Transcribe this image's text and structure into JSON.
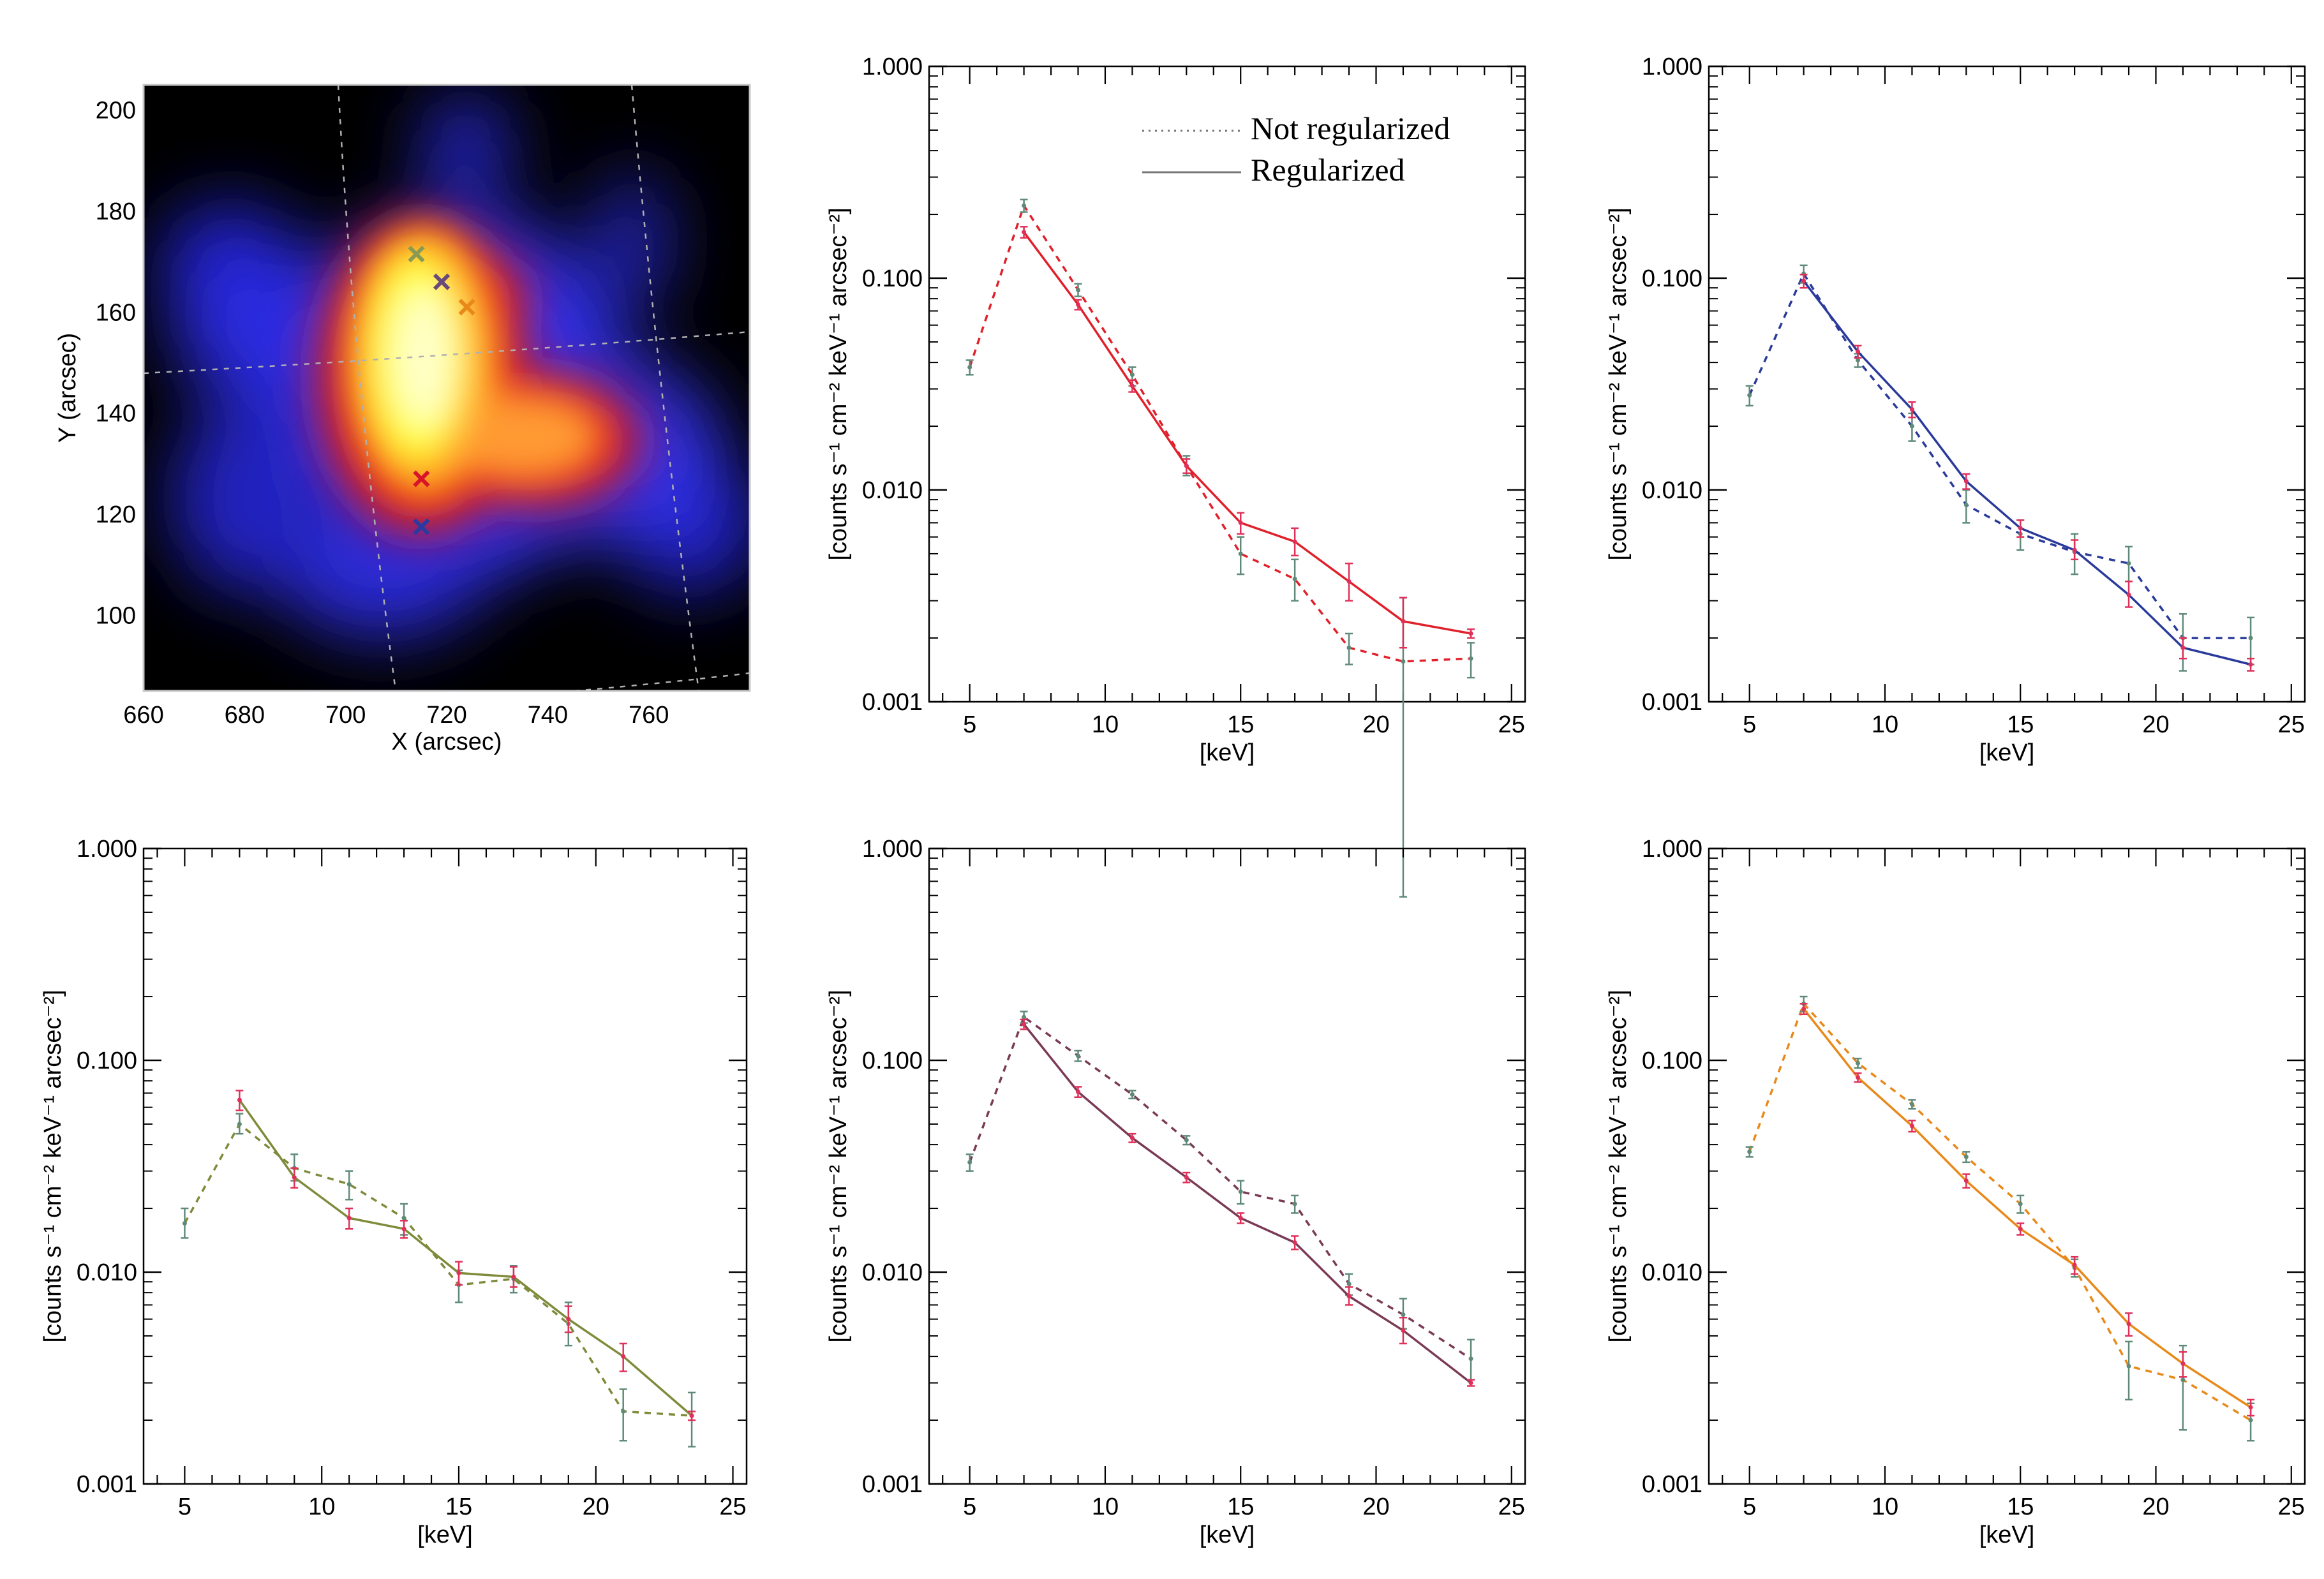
{
  "figure": {
    "map_panel": {
      "xlabel": "X (arcsec)",
      "ylabel": "Y (arcsec)",
      "xlim": [
        660,
        780
      ],
      "ylim": [
        85,
        205
      ],
      "xticks": [
        "660",
        "680",
        "700",
        "720",
        "740",
        "760"
      ],
      "yticks": [
        "100",
        "120",
        "140",
        "160",
        "180",
        "200"
      ],
      "markers": [
        {
          "name": "marker-olive",
          "x": 714,
          "y": 171.5,
          "color": "#8a9a55"
        },
        {
          "name": "marker-purple",
          "x": 719,
          "y": 166,
          "color": "#6a4a7a"
        },
        {
          "name": "marker-orange",
          "x": 724,
          "y": 161,
          "color": "#e8891a"
        },
        {
          "name": "marker-red",
          "x": 715,
          "y": 127,
          "color": "#d8142a"
        },
        {
          "name": "marker-blue",
          "x": 715,
          "y": 117.5,
          "color": "#2a3aa0"
        }
      ]
    },
    "legend": {
      "not_regularized": "Not regularized",
      "regularized": "Regularized"
    },
    "spectra_xlabel": "[keV]",
    "spectra_ylabel": "[counts s⁻¹ cm⁻² keV⁻¹ arcsec⁻²]",
    "spectra_xticks": [
      "5",
      "10",
      "15",
      "20",
      "25"
    ],
    "spectra_yticks": [
      "0.001",
      "0.010",
      "0.100",
      "1.000"
    ],
    "spectra_xlim": [
      3.5,
      25.5
    ],
    "spectra_ylim": [
      0.001,
      1.0
    ]
  },
  "chart_data": [
    {
      "type": "image",
      "title": "",
      "xlabel": "X (arcsec)",
      "ylabel": "Y (arcsec)",
      "xlim": [
        660,
        780
      ],
      "ylim": [
        85,
        205
      ]
    },
    {
      "type": "line",
      "color": "#e0202a",
      "x": [
        5,
        7,
        9,
        11,
        13,
        15,
        17,
        19,
        21,
        23.5
      ],
      "series": [
        {
          "name": "Not regularized",
          "style": "dashed",
          "x": [
            5,
            7,
            9,
            11,
            13,
            15,
            17,
            19,
            21,
            23.5
          ],
          "values": [
            0.038,
            0.22,
            0.088,
            0.035,
            0.013,
            0.005,
            0.0038,
            0.0018,
            0.00155,
            0.0016
          ],
          "err_low": [
            0.035,
            0.205,
            0.082,
            0.031,
            0.0117,
            0.004,
            0.003,
            0.0015,
            0.00012,
            0.0013
          ],
          "err_high": [
            0.041,
            0.235,
            0.094,
            0.038,
            0.0145,
            0.006,
            0.0047,
            0.0021,
            0.0031,
            0.0019
          ]
        },
        {
          "name": "Regularized",
          "style": "solid",
          "x": [
            7,
            9,
            11,
            13,
            15,
            17,
            19,
            21,
            23.5
          ],
          "values": [
            0.165,
            0.075,
            0.031,
            0.013,
            0.007,
            0.0057,
            0.0037,
            0.0024,
            0.0021
          ],
          "err_low": [
            0.155,
            0.071,
            0.029,
            0.012,
            0.0062,
            0.0049,
            0.003,
            0.0018,
            0.002
          ],
          "err_high": [
            0.175,
            0.079,
            0.033,
            0.014,
            0.0078,
            0.0066,
            0.0045,
            0.0031,
            0.0022
          ]
        }
      ],
      "xlabel": "[keV]",
      "ylabel": "[counts s⁻¹ cm⁻² keV⁻¹ arcsec⁻²]",
      "xlim": [
        3.5,
        25.5
      ],
      "ylim": [
        0.001,
        1.0
      ],
      "yscale": "log"
    },
    {
      "type": "line",
      "color": "#2a3a9a",
      "series": [
        {
          "name": "Not regularized",
          "style": "dashed",
          "x": [
            5,
            7,
            9,
            11,
            13,
            15,
            17,
            19,
            21,
            23.5
          ],
          "values": [
            0.028,
            0.105,
            0.041,
            0.02,
            0.0085,
            0.0062,
            0.0051,
            0.0045,
            0.002,
            0.002
          ],
          "err_low": [
            0.025,
            0.095,
            0.038,
            0.017,
            0.007,
            0.0052,
            0.004,
            0.0037,
            0.0014,
            0.0015
          ],
          "err_high": [
            0.031,
            0.115,
            0.044,
            0.023,
            0.01,
            0.0072,
            0.0062,
            0.0054,
            0.0026,
            0.0025
          ]
        },
        {
          "name": "Regularized",
          "style": "solid",
          "x": [
            7,
            9,
            11,
            13,
            15,
            17,
            19,
            21,
            23.5
          ],
          "values": [
            0.097,
            0.045,
            0.024,
            0.011,
            0.0066,
            0.0052,
            0.0032,
            0.0018,
            0.0015
          ],
          "err_low": [
            0.09,
            0.042,
            0.022,
            0.0101,
            0.006,
            0.0047,
            0.0028,
            0.0016,
            0.0014
          ],
          "err_high": [
            0.104,
            0.048,
            0.026,
            0.0119,
            0.0072,
            0.0058,
            0.0037,
            0.002,
            0.0016
          ]
        }
      ],
      "xlabel": "[keV]",
      "ylabel": "[counts s⁻¹ cm⁻² keV⁻¹ arcsec⁻²]",
      "xlim": [
        3.5,
        25.5
      ],
      "ylim": [
        0.001,
        1.0
      ],
      "yscale": "log"
    },
    {
      "type": "line",
      "color": "#7f8a3a",
      "series": [
        {
          "name": "Not regularized",
          "style": "dashed",
          "x": [
            5,
            7,
            9,
            11,
            13,
            15,
            17,
            19,
            21,
            23.5
          ],
          "values": [
            0.017,
            0.05,
            0.031,
            0.026,
            0.018,
            0.0087,
            0.0093,
            0.0057,
            0.0022,
            0.0021
          ],
          "err_low": [
            0.0145,
            0.045,
            0.027,
            0.022,
            0.015,
            0.0072,
            0.008,
            0.0045,
            0.0016,
            0.0015
          ],
          "err_high": [
            0.02,
            0.056,
            0.036,
            0.03,
            0.021,
            0.0102,
            0.0107,
            0.0072,
            0.0028,
            0.0027
          ]
        },
        {
          "name": "Regularized",
          "style": "solid",
          "x": [
            7,
            9,
            11,
            13,
            15,
            17,
            19,
            21,
            23.5
          ],
          "values": [
            0.065,
            0.028,
            0.018,
            0.016,
            0.0099,
            0.0095,
            0.006,
            0.004,
            0.0021
          ],
          "err_low": [
            0.058,
            0.025,
            0.016,
            0.0145,
            0.0087,
            0.0085,
            0.0052,
            0.0034,
            0.002
          ],
          "err_high": [
            0.072,
            0.031,
            0.02,
            0.0175,
            0.0112,
            0.0106,
            0.0069,
            0.0046,
            0.0022
          ]
        }
      ],
      "xlabel": "[keV]",
      "ylabel": "[counts s⁻¹ cm⁻² keV⁻¹ arcsec⁻²]",
      "xlim": [
        3.5,
        25.5
      ],
      "ylim": [
        0.001,
        1.0
      ],
      "yscale": "log"
    },
    {
      "type": "line",
      "color": "#7a3a55",
      "series": [
        {
          "name": "Not regularized",
          "style": "dashed",
          "x": [
            5,
            7,
            9,
            11,
            13,
            15,
            17,
            19,
            21,
            23.5
          ],
          "values": [
            0.033,
            0.16,
            0.105,
            0.069,
            0.042,
            0.024,
            0.021,
            0.0088,
            0.0063,
            0.0039
          ],
          "err_low": [
            0.03,
            0.15,
            0.099,
            0.066,
            0.04,
            0.021,
            0.019,
            0.0078,
            0.0054,
            0.0031
          ],
          "err_high": [
            0.036,
            0.17,
            0.111,
            0.072,
            0.044,
            0.027,
            0.023,
            0.0098,
            0.0075,
            0.0048
          ]
        },
        {
          "name": "Regularized",
          "style": "solid",
          "x": [
            7,
            9,
            11,
            13,
            15,
            17,
            19,
            21,
            23.5
          ],
          "values": [
            0.148,
            0.071,
            0.043,
            0.028,
            0.018,
            0.0138,
            0.0077,
            0.0053,
            0.003
          ],
          "err_low": [
            0.14,
            0.067,
            0.041,
            0.0265,
            0.017,
            0.0128,
            0.007,
            0.0046,
            0.0029
          ],
          "err_high": [
            0.156,
            0.075,
            0.045,
            0.0295,
            0.019,
            0.0148,
            0.0085,
            0.0061,
            0.0031
          ]
        }
      ],
      "xlabel": "[keV]",
      "ylabel": "[counts s⁻¹ cm⁻² keV⁻¹ arcsec⁻²]",
      "xlim": [
        3.5,
        25.5
      ],
      "ylim": [
        0.001,
        1.0
      ],
      "yscale": "log"
    },
    {
      "type": "line",
      "color": "#e8891a",
      "series": [
        {
          "name": "Not regularized",
          "style": "dashed",
          "x": [
            5,
            7,
            9,
            11,
            13,
            15,
            17,
            19,
            21,
            23.5
          ],
          "values": [
            0.037,
            0.185,
            0.097,
            0.062,
            0.035,
            0.021,
            0.0105,
            0.0036,
            0.0031,
            0.002
          ],
          "err_low": [
            0.035,
            0.17,
            0.092,
            0.059,
            0.033,
            0.019,
            0.0095,
            0.0025,
            0.0018,
            0.0016
          ],
          "err_high": [
            0.039,
            0.2,
            0.102,
            0.065,
            0.037,
            0.023,
            0.0115,
            0.0047,
            0.0045,
            0.0024
          ]
        },
        {
          "name": "Regularized",
          "style": "solid",
          "x": [
            7,
            9,
            11,
            13,
            15,
            17,
            19,
            21,
            23.5
          ],
          "values": [
            0.175,
            0.083,
            0.049,
            0.027,
            0.016,
            0.0108,
            0.0057,
            0.0037,
            0.0023
          ],
          "err_low": [
            0.165,
            0.079,
            0.046,
            0.025,
            0.015,
            0.0098,
            0.005,
            0.0032,
            0.0021
          ],
          "err_high": [
            0.185,
            0.087,
            0.052,
            0.029,
            0.017,
            0.0118,
            0.0064,
            0.0042,
            0.0025
          ]
        }
      ],
      "xlabel": "[keV]",
      "ylabel": "[counts s⁻¹ cm⁻² keV⁻¹ arcsec⁻²]",
      "xlim": [
        3.5,
        25.5
      ],
      "ylim": [
        0.001,
        1.0
      ],
      "yscale": "log"
    }
  ]
}
